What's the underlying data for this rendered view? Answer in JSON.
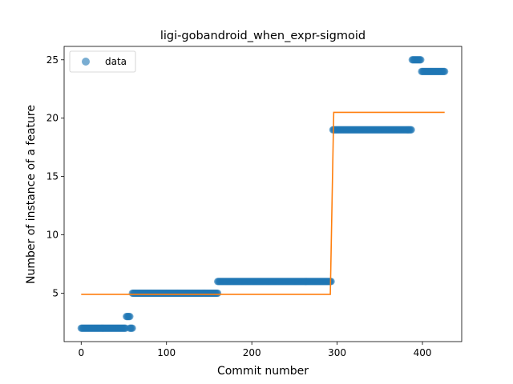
{
  "chart_data": {
    "type": "scatter",
    "title": "ligi-gobandroid_when_expr-sigmoid",
    "xlabel": "Commit number",
    "ylabel": "Number of instance of a feature",
    "xlim": [
      -20,
      446
    ],
    "ylim": [
      0.85,
      26.15
    ],
    "xticks": [
      0,
      100,
      200,
      300,
      400
    ],
    "yticks": [
      5,
      10,
      15,
      20,
      25
    ],
    "grid": false,
    "legend": {
      "placement": "top-left",
      "entries": [
        "data"
      ]
    },
    "colors": {
      "data": "#1f77b4",
      "fit": "#ff7f0e"
    },
    "series": [
      {
        "name": "data",
        "kind": "scatter",
        "segments": [
          {
            "x_start": 0,
            "x_end": 52,
            "y": 2
          },
          {
            "x_start": 53,
            "x_end": 57,
            "y": 3
          },
          {
            "x_start": 57,
            "x_end": 60,
            "y": 2
          },
          {
            "x_start": 60,
            "x_end": 160,
            "y": 5
          },
          {
            "x_start": 160,
            "x_end": 293,
            "y": 6
          },
          {
            "x_start": 295,
            "x_end": 387,
            "y": 19
          },
          {
            "x_start": 388,
            "x_end": 398,
            "y": 25
          },
          {
            "x_start": 399,
            "x_end": 426,
            "y": 24
          }
        ]
      },
      {
        "kind": "line",
        "x": [
          0,
          292,
          294,
          296,
          426
        ],
        "y": [
          4.9,
          4.9,
          12.7,
          20.5,
          20.5
        ]
      }
    ]
  }
}
